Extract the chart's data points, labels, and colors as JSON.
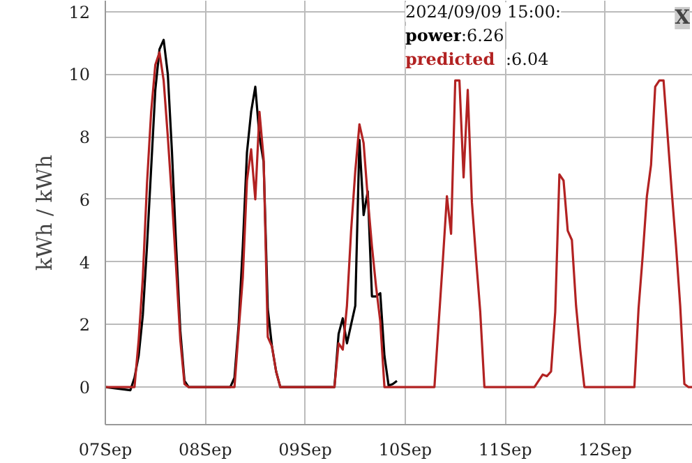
{
  "chart_data": {
    "type": "line",
    "ylabel": "kWh / kWh",
    "xlim": [
      "2024-09-07T00:00",
      "2024-09-12T21:00"
    ],
    "ylim": [
      -1.2,
      12.35
    ],
    "xticks": [
      {
        "value": "2024-09-07",
        "label": "07Sep"
      },
      {
        "value": "2024-09-08",
        "label": "08Sep"
      },
      {
        "value": "2024-09-09",
        "label": "09Sep"
      },
      {
        "value": "2024-09-10",
        "label": "10Sep"
      },
      {
        "value": "2024-09-11",
        "label": "11Sep"
      },
      {
        "value": "2024-09-12",
        "label": "12Sep"
      }
    ],
    "yticks": [
      0,
      2,
      4,
      6,
      8,
      10,
      12
    ],
    "grid": true,
    "line_style": "solid",
    "annotations": [
      "2024/09/09 15:00:",
      ":6.26",
      ":6.04",
      "X"
    ],
    "series": [
      {
        "name": "power",
        "color": "#000000",
        "x": [
          "2024-09-07T00:00",
          "2024-09-07T06:00",
          "2024-09-07T07:00",
          "2024-09-07T08:00",
          "2024-09-07T09:00",
          "2024-09-07T10:00",
          "2024-09-07T11:00",
          "2024-09-07T12:00",
          "2024-09-07T13:00",
          "2024-09-07T14:00",
          "2024-09-07T15:00",
          "2024-09-07T16:00",
          "2024-09-07T17:00",
          "2024-09-07T18:00",
          "2024-09-07T19:00",
          "2024-09-07T20:00",
          "2024-09-08T06:00",
          "2024-09-08T07:00",
          "2024-09-08T08:00",
          "2024-09-08T09:00",
          "2024-09-08T10:00",
          "2024-09-08T11:00",
          "2024-09-08T12:00",
          "2024-09-08T13:00",
          "2024-09-08T14:00",
          "2024-09-08T15:00",
          "2024-09-08T16:00",
          "2024-09-08T17:00",
          "2024-09-08T18:00",
          "2024-09-09T07:00",
          "2024-09-09T08:00",
          "2024-09-09T09:00",
          "2024-09-09T10:00",
          "2024-09-09T11:00",
          "2024-09-09T12:00",
          "2024-09-09T13:00",
          "2024-09-09T14:00",
          "2024-09-09T15:00",
          "2024-09-09T16:00",
          "2024-09-09T17:00",
          "2024-09-09T18:00",
          "2024-09-09T19:00",
          "2024-09-09T20:00",
          "2024-09-09T21:00",
          "2024-09-09T22:00"
        ],
        "values": [
          0,
          -0.1,
          0.3,
          1.0,
          2.3,
          4.5,
          7.0,
          9.5,
          10.8,
          11.1,
          10.0,
          7.5,
          4.5,
          1.8,
          0.2,
          0,
          0,
          0.3,
          2.0,
          4.5,
          7.5,
          8.8,
          9.6,
          8.0,
          7.2,
          2.5,
          1.3,
          0.5,
          0,
          0,
          1.7,
          2.2,
          1.4,
          2.0,
          2.6,
          7.9,
          5.5,
          6.26,
          2.9,
          2.9,
          3.0,
          1.0,
          0.05,
          0.1,
          0.2
        ]
      },
      {
        "name": "predicted",
        "color": "#b22222",
        "x": [
          "2024-09-07T00:00",
          "2024-09-07T07:00",
          "2024-09-07T08:00",
          "2024-09-07T09:00",
          "2024-09-07T10:00",
          "2024-09-07T11:00",
          "2024-09-07T12:00",
          "2024-09-07T13:00",
          "2024-09-07T14:00",
          "2024-09-07T15:00",
          "2024-09-07T16:00",
          "2024-09-07T17:00",
          "2024-09-07T18:00",
          "2024-09-07T19:00",
          "2024-09-07T20:00",
          "2024-09-08T07:00",
          "2024-09-08T08:00",
          "2024-09-08T09:00",
          "2024-09-08T10:00",
          "2024-09-08T11:00",
          "2024-09-08T12:00",
          "2024-09-08T13:00",
          "2024-09-08T14:00",
          "2024-09-08T15:00",
          "2024-09-08T16:00",
          "2024-09-08T17:00",
          "2024-09-08T18:00",
          "2024-09-09T07:00",
          "2024-09-09T08:00",
          "2024-09-09T09:00",
          "2024-09-09T10:00",
          "2024-09-09T11:00",
          "2024-09-09T12:00",
          "2024-09-09T13:00",
          "2024-09-09T14:00",
          "2024-09-09T15:00",
          "2024-09-09T16:00",
          "2024-09-09T17:00",
          "2024-09-09T18:00",
          "2024-09-09T19:00",
          "2024-09-10T07:00",
          "2024-09-10T08:00",
          "2024-09-10T09:00",
          "2024-09-10T10:00",
          "2024-09-10T11:00",
          "2024-09-10T12:00",
          "2024-09-10T13:00",
          "2024-09-10T14:00",
          "2024-09-10T15:00",
          "2024-09-10T16:00",
          "2024-09-10T17:00",
          "2024-09-10T18:00",
          "2024-09-10T19:00",
          "2024-09-11T07:00",
          "2024-09-11T08:00",
          "2024-09-11T09:00",
          "2024-09-11T10:00",
          "2024-09-11T11:00",
          "2024-09-11T12:00",
          "2024-09-11T13:00",
          "2024-09-11T14:00",
          "2024-09-11T15:00",
          "2024-09-11T16:00",
          "2024-09-11T17:00",
          "2024-09-11T18:00",
          "2024-09-11T19:00",
          "2024-09-12T07:00",
          "2024-09-12T08:00",
          "2024-09-12T09:00",
          "2024-09-12T10:00",
          "2024-09-12T11:00",
          "2024-09-12T12:00",
          "2024-09-12T13:00",
          "2024-09-12T14:00",
          "2024-09-12T15:00",
          "2024-09-12T16:00",
          "2024-09-12T17:00",
          "2024-09-12T18:00",
          "2024-09-12T19:00",
          "2024-09-12T20:00",
          "2024-09-12T21:00"
        ],
        "values": [
          0,
          0,
          1.5,
          3.5,
          6.5,
          8.8,
          10.3,
          10.7,
          9.8,
          8.0,
          6.0,
          3.8,
          1.5,
          0.1,
          0,
          0,
          1.8,
          3.5,
          6.6,
          7.6,
          6.0,
          8.8,
          7.3,
          1.6,
          1.3,
          0.5,
          0,
          0,
          1.4,
          1.2,
          2.6,
          5.0,
          6.9,
          8.4,
          7.8,
          6.04,
          4.5,
          3.2,
          2.1,
          0,
          0,
          2.0,
          4.0,
          6.1,
          4.9,
          9.8,
          9.8,
          6.7,
          9.5,
          5.9,
          4.1,
          2.4,
          0,
          0,
          0.2,
          0.4,
          0.35,
          0.5,
          2.4,
          6.8,
          6.6,
          5.0,
          4.7,
          2.6,
          1.2,
          0,
          0,
          2.5,
          4.2,
          6.1,
          7.1,
          9.6,
          9.8,
          9.8,
          8.0,
          6.2,
          4.5,
          2.6,
          0.1,
          0,
          0
        ]
      }
    ]
  }
}
